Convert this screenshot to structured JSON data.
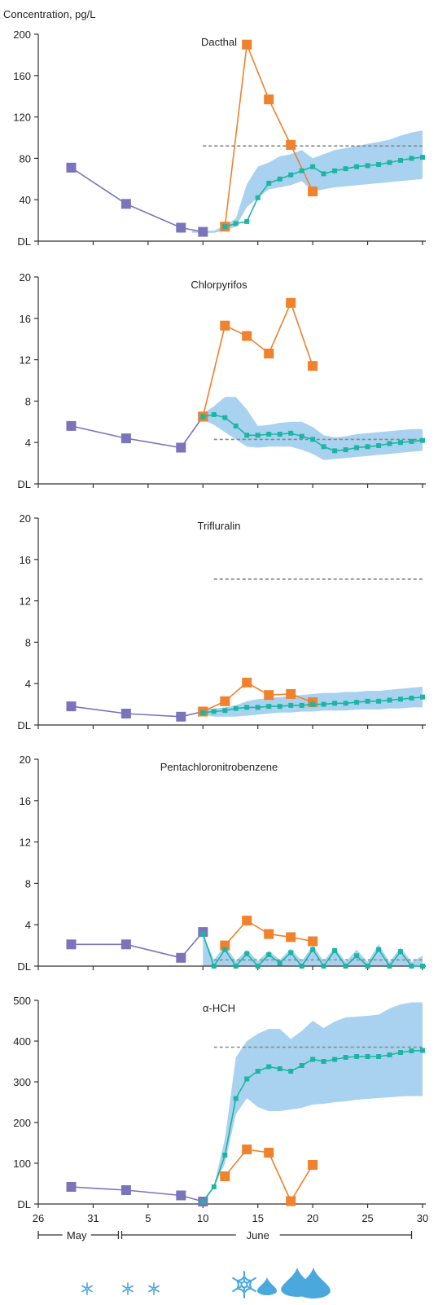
{
  "y_axis_title": "Concentration, pg/L",
  "x_axis": {
    "tick_labels": [
      "26",
      "31",
      "5",
      "10",
      "15",
      "20",
      "25",
      "30"
    ],
    "month_labels": [
      "May",
      "June"
    ]
  },
  "colors": {
    "observed_before": "#7b74bd",
    "observed_after": "#f0812d",
    "model": "#1cb5a3",
    "model_band": "#a9d2f0",
    "reference_line": "#888888",
    "axis": "#333333",
    "weather_icons": "#4aa8dd"
  },
  "weather_icons": [
    "snowflake-icon",
    "snowflake-icon",
    "snowflake-icon",
    "snowflake-large-icon",
    "raindrop-icon",
    "raindrop-icon",
    "raindrop-icon"
  ],
  "chart_data": [
    {
      "type": "line",
      "title": "Dacthal",
      "xlabel": "",
      "ylabel": "Concentration, pg/L",
      "ylim": [
        0,
        200
      ],
      "y_tick_labels": [
        "DL",
        "40",
        "80",
        "120",
        "160",
        "200"
      ],
      "y_tick_values": [
        0,
        40,
        80,
        120,
        160,
        200
      ],
      "xlim": [
        26,
        61
      ],
      "reference_line": {
        "y": 92,
        "x_start": 41,
        "x_end": 61
      },
      "model_band": {
        "x": [
          40,
          42,
          43,
          44,
          45,
          46,
          47,
          48,
          49,
          50,
          51,
          52,
          53,
          54,
          55,
          56,
          57,
          58,
          59,
          60,
          61
        ],
        "lower": [
          8,
          8,
          10,
          14,
          33,
          42,
          50,
          52,
          54,
          58,
          48,
          50,
          52,
          53,
          54,
          55,
          56,
          57,
          58,
          59,
          60
        ],
        "upper": [
          10,
          10,
          15,
          22,
          55,
          72,
          76,
          82,
          84,
          88,
          80,
          84,
          88,
          90,
          92,
          94,
          96,
          98,
          102,
          105,
          107
        ]
      },
      "series": [
        {
          "name": "",
          "role": "observed_before",
          "x": [
            29,
            34,
            39,
            41
          ],
          "values": [
            71,
            36,
            13,
            9
          ]
        },
        {
          "name": "",
          "role": "observed_after",
          "x": [
            43,
            45,
            47,
            49,
            51
          ],
          "values": [
            14,
            190,
            137,
            93,
            48
          ]
        },
        {
          "name": "",
          "role": "model",
          "x": [
            43,
            44,
            45,
            46,
            47,
            48,
            49,
            50,
            51,
            52,
            53,
            54,
            55,
            56,
            57,
            58,
            59,
            60,
            61
          ],
          "values": [
            14,
            17,
            19,
            42,
            56,
            60,
            64,
            68,
            72,
            65,
            68,
            70,
            72,
            73,
            74,
            76,
            78,
            80,
            81
          ]
        }
      ]
    },
    {
      "type": "line",
      "title": "Chlorpyrifos",
      "xlabel": "",
      "ylabel": "",
      "ylim": [
        0,
        20
      ],
      "y_tick_labels": [
        "DL",
        "4",
        "8",
        "12",
        "16",
        "20"
      ],
      "y_tick_values": [
        0,
        4,
        8,
        12,
        16,
        20
      ],
      "xlim": [
        26,
        61
      ],
      "reference_line": {
        "y": 4.3,
        "x_start": 42,
        "x_end": 61
      },
      "model_band": {
        "x": [
          41,
          42,
          43,
          44,
          45,
          46,
          47,
          48,
          49,
          50,
          51,
          52,
          53,
          54,
          55,
          56,
          57,
          58,
          59,
          60,
          61
        ],
        "lower": [
          6.2,
          5.7,
          5.0,
          4.3,
          3.6,
          3.5,
          3.6,
          3.6,
          3.6,
          3.3,
          2.9,
          2.3,
          2.4,
          2.5,
          2.6,
          2.7,
          2.8,
          2.9,
          3.0,
          3.1,
          3.2
        ],
        "upper": [
          6.8,
          7.5,
          8.4,
          8.4,
          7.2,
          5.6,
          5.7,
          5.9,
          6.0,
          6.0,
          5.5,
          4.7,
          4.5,
          4.6,
          4.8,
          4.9,
          5.0,
          5.1,
          5.2,
          5.3,
          5.3
        ]
      },
      "series": [
        {
          "name": "",
          "role": "observed_before",
          "x": [
            29,
            34,
            39,
            41
          ],
          "values": [
            5.6,
            4.4,
            3.5,
            6.5
          ]
        },
        {
          "name": "",
          "role": "observed_after",
          "x": [
            41,
            43,
            45,
            47,
            49,
            51
          ],
          "values": [
            6.5,
            15.3,
            14.3,
            12.6,
            17.5,
            11.4
          ]
        },
        {
          "name": "",
          "role": "model",
          "x": [
            41,
            42,
            43,
            44,
            45,
            46,
            47,
            48,
            49,
            50,
            51,
            52,
            53,
            54,
            55,
            56,
            57,
            58,
            59,
            60,
            61
          ],
          "values": [
            6.5,
            6.7,
            6.4,
            5.6,
            4.7,
            4.7,
            4.8,
            4.8,
            4.9,
            4.6,
            4.3,
            3.6,
            3.2,
            3.3,
            3.5,
            3.6,
            3.7,
            3.9,
            4.0,
            4.1,
            4.2
          ]
        }
      ]
    },
    {
      "type": "line",
      "title": "Trifluralin",
      "xlabel": "",
      "ylabel": "",
      "ylim": [
        0,
        20
      ],
      "y_tick_labels": [
        "DL",
        "4",
        "8",
        "12",
        "16",
        "20"
      ],
      "y_tick_values": [
        0,
        4,
        8,
        12,
        16,
        20
      ],
      "xlim": [
        26,
        61
      ],
      "reference_line": {
        "y": 14.1,
        "x_start": 42,
        "x_end": 61
      },
      "model_band": {
        "x": [
          41,
          42,
          43,
          44,
          45,
          46,
          47,
          48,
          49,
          50,
          51,
          52,
          53,
          54,
          55,
          56,
          57,
          58,
          59,
          60,
          61
        ],
        "lower": [
          1.0,
          0.8,
          0.8,
          0.8,
          0.9,
          1.0,
          1.1,
          1.2,
          1.2,
          1.3,
          1.3,
          1.4,
          1.4,
          1.4,
          1.5,
          1.5,
          1.5,
          1.6,
          1.6,
          1.7,
          1.7
        ],
        "upper": [
          1.5,
          1.6,
          1.7,
          1.9,
          2.3,
          2.5,
          2.6,
          2.7,
          2.8,
          2.9,
          3.0,
          3.1,
          3.1,
          3.2,
          3.2,
          3.3,
          3.3,
          3.4,
          3.5,
          3.6,
          3.7
        ]
      },
      "series": [
        {
          "name": "",
          "role": "observed_before",
          "x": [
            29,
            34,
            39,
            41
          ],
          "values": [
            1.8,
            1.1,
            0.8,
            1.3
          ]
        },
        {
          "name": "",
          "role": "observed_after",
          "x": [
            41,
            43,
            45,
            47,
            49,
            51
          ],
          "values": [
            1.3,
            2.3,
            4.1,
            2.9,
            3.0,
            2.2
          ]
        },
        {
          "name": "",
          "role": "model",
          "x": [
            41,
            42,
            43,
            44,
            45,
            46,
            47,
            48,
            49,
            50,
            51,
            52,
            53,
            54,
            55,
            56,
            57,
            58,
            59,
            60,
            61
          ],
          "values": [
            1.2,
            1.3,
            1.4,
            1.6,
            1.7,
            1.7,
            1.8,
            1.8,
            1.9,
            1.9,
            2.0,
            2.0,
            2.1,
            2.1,
            2.2,
            2.3,
            2.3,
            2.4,
            2.5,
            2.6,
            2.7
          ]
        }
      ]
    },
    {
      "type": "line",
      "title": "Pentachloronitrobenzene",
      "xlabel": "",
      "ylabel": "",
      "ylim": [
        0,
        20
      ],
      "y_tick_labels": [
        "DL",
        "4",
        "8",
        "12",
        "16",
        "20"
      ],
      "y_tick_values": [
        0,
        4,
        8,
        12,
        16,
        20
      ],
      "xlim": [
        26,
        61
      ],
      "reference_line": {
        "y": 0.6,
        "x_start": 42,
        "x_end": 61
      },
      "model_band": {
        "x": [
          41,
          42,
          43,
          44,
          45,
          46,
          47,
          48,
          49,
          50,
          51,
          52,
          53,
          54,
          55,
          56,
          57,
          58,
          59,
          60,
          61
        ],
        "lower": [
          0,
          0,
          0,
          0,
          0,
          0,
          0,
          0,
          0,
          0,
          0,
          0,
          0,
          0,
          0,
          0,
          0,
          0,
          0,
          0,
          0
        ],
        "upper": [
          3.1,
          0.6,
          2.0,
          0.5,
          1.6,
          0.5,
          1.5,
          0.6,
          1.7,
          0.5,
          2.0,
          0.5,
          1.8,
          0.4,
          1.6,
          0.4,
          2.1,
          0.4,
          1.8,
          0.4,
          1.0
        ]
      },
      "series": [
        {
          "name": "",
          "role": "observed_before",
          "x": [
            29,
            34,
            39,
            41
          ],
          "values": [
            2.1,
            2.1,
            0.8,
            3.3
          ]
        },
        {
          "name": "",
          "role": "observed_after",
          "x": [
            43,
            45,
            47,
            49,
            51
          ],
          "values": [
            2.0,
            4.4,
            3.1,
            2.8,
            2.4
          ]
        },
        {
          "name": "",
          "role": "model",
          "x": [
            41,
            42,
            43,
            44,
            45,
            46,
            47,
            48,
            49,
            50,
            51,
            52,
            53,
            54,
            55,
            56,
            57,
            58,
            59,
            60,
            61
          ],
          "values": [
            3.1,
            0,
            1.6,
            0,
            1.2,
            0,
            1.1,
            0.3,
            1.3,
            0,
            1.6,
            0,
            1.5,
            0,
            1.0,
            0,
            1.6,
            0,
            1.4,
            0,
            0
          ]
        }
      ]
    },
    {
      "type": "line",
      "title": "α-HCH",
      "xlabel": "",
      "ylabel": "",
      "ylim": [
        0,
        500
      ],
      "y_tick_labels": [
        "DL",
        "100",
        "200",
        "300",
        "400",
        "500"
      ],
      "y_tick_values": [
        0,
        100,
        200,
        300,
        400,
        500
      ],
      "xlim": [
        26,
        61
      ],
      "reference_line": {
        "y": 385,
        "x_start": 42,
        "x_end": 61
      },
      "model_band": {
        "x": [
          41,
          42,
          43,
          44,
          45,
          46,
          47,
          48,
          49,
          50,
          51,
          52,
          53,
          54,
          55,
          56,
          57,
          58,
          59,
          60,
          61
        ],
        "lower": [
          5,
          40,
          100,
          220,
          260,
          238,
          228,
          228,
          232,
          236,
          244,
          246,
          250,
          252,
          256,
          258,
          260,
          262,
          264,
          265,
          265
        ],
        "upper": [
          10,
          45,
          160,
          360,
          400,
          418,
          430,
          430,
          405,
          425,
          450,
          432,
          448,
          458,
          460,
          462,
          465,
          480,
          490,
          495,
          495
        ]
      },
      "series": [
        {
          "name": "",
          "role": "observed_before",
          "x": [
            29,
            34,
            39,
            41
          ],
          "values": [
            42,
            34,
            21,
            6
          ]
        },
        {
          "name": "",
          "role": "observed_after",
          "x": [
            43,
            45,
            47,
            49,
            51
          ],
          "values": [
            68,
            134,
            126,
            7,
            96
          ]
        },
        {
          "name": "",
          "role": "model",
          "x": [
            41,
            42,
            43,
            44,
            45,
            46,
            47,
            48,
            49,
            50,
            51,
            52,
            53,
            54,
            55,
            56,
            57,
            58,
            59,
            60,
            61
          ],
          "values": [
            6,
            42,
            120,
            259,
            307,
            326,
            337,
            332,
            326,
            340,
            355,
            350,
            355,
            360,
            362,
            362,
            362,
            366,
            372,
            376,
            377
          ]
        }
      ]
    }
  ]
}
